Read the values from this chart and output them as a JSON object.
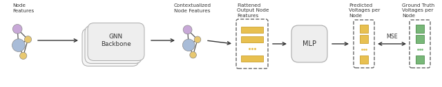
{
  "fig_width": 6.4,
  "fig_height": 1.27,
  "dpi": 100,
  "bg_color": "#ffffff",
  "node_colors": {
    "purple": "#c8a8d8",
    "yellow": "#e8c870",
    "blue": "#a8bcd8"
  },
  "labels": {
    "node_features": "Node\nFeatures",
    "gnn_backbone": "GNN\nBackbone",
    "contextualized": "Contextualized\nNode Features",
    "flattened": "Flattened\nOutput Node\nFeatures",
    "mlp": "MLP",
    "predicted": "Predicted\nVoltages per\nNode",
    "ground_truth": "Ground Truth\nVoltages per\nNode",
    "mse": "MSE"
  },
  "bar_color_yellow": "#e8c050",
  "bar_edge_yellow": "#c8a030",
  "bar_color_green": "#78b878",
  "bar_edge_green": "#4a8a4a",
  "dashed_color": "#666666",
  "arrow_color": "#333333",
  "text_color": "#333333",
  "edge_color": "#555555",
  "box_color": "#eeeeee",
  "box_ec": "#aaaaaa",
  "font_size": 5.2,
  "mlp_font_size": 7.0
}
